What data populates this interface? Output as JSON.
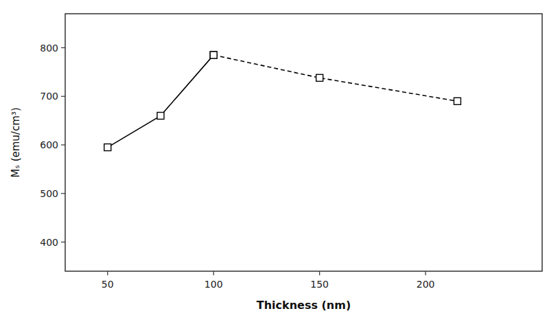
{
  "chart_data": {
    "type": "line",
    "xlabel": "Thickness (nm)",
    "ylabel": "Mₛ (emu/cm³)",
    "x": [
      50,
      75,
      100,
      150,
      215
    ],
    "series": [
      {
        "values": [
          595,
          660,
          785,
          null,
          null
        ],
        "color": "black",
        "marker": "square",
        "line_style": "solid"
      },
      {
        "values": [
          null,
          null,
          785,
          738,
          690
        ],
        "color": "black",
        "marker": "square",
        "line_style": "dashed"
      }
    ],
    "xlim": [
      30,
      255
    ],
    "ylim": [
      340,
      870
    ],
    "xticks": [
      50,
      100,
      150,
      200
    ],
    "yticks": [
      400,
      500,
      600,
      700,
      800
    ],
    "grid": false
  }
}
